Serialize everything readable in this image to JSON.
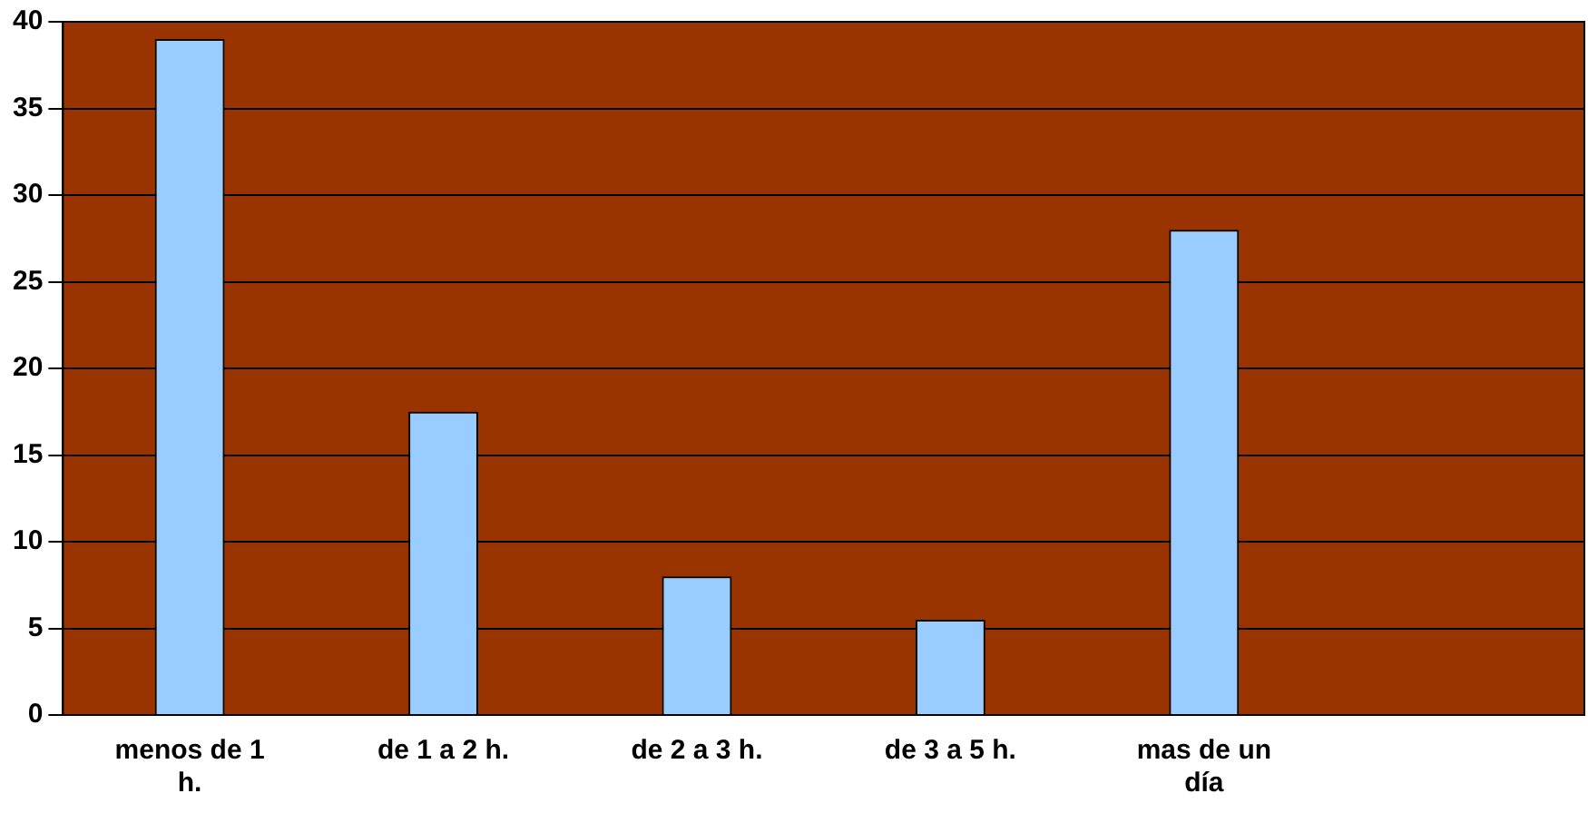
{
  "chart_data": {
    "type": "bar",
    "categories": [
      "menos de 1 h.",
      "de 1 a 2 h.",
      "de 2 a 3 h.",
      "de 3 a 5 h.",
      "mas de un día",
      null
    ],
    "values": [
      39,
      17.5,
      8,
      5.5,
      28,
      null
    ],
    "color": "#99ccff",
    "ylim": [
      0,
      40
    ],
    "yticks": [
      0,
      5,
      10,
      15,
      20,
      25,
      30,
      35,
      40
    ],
    "grid": "y",
    "legend": false
  }
}
